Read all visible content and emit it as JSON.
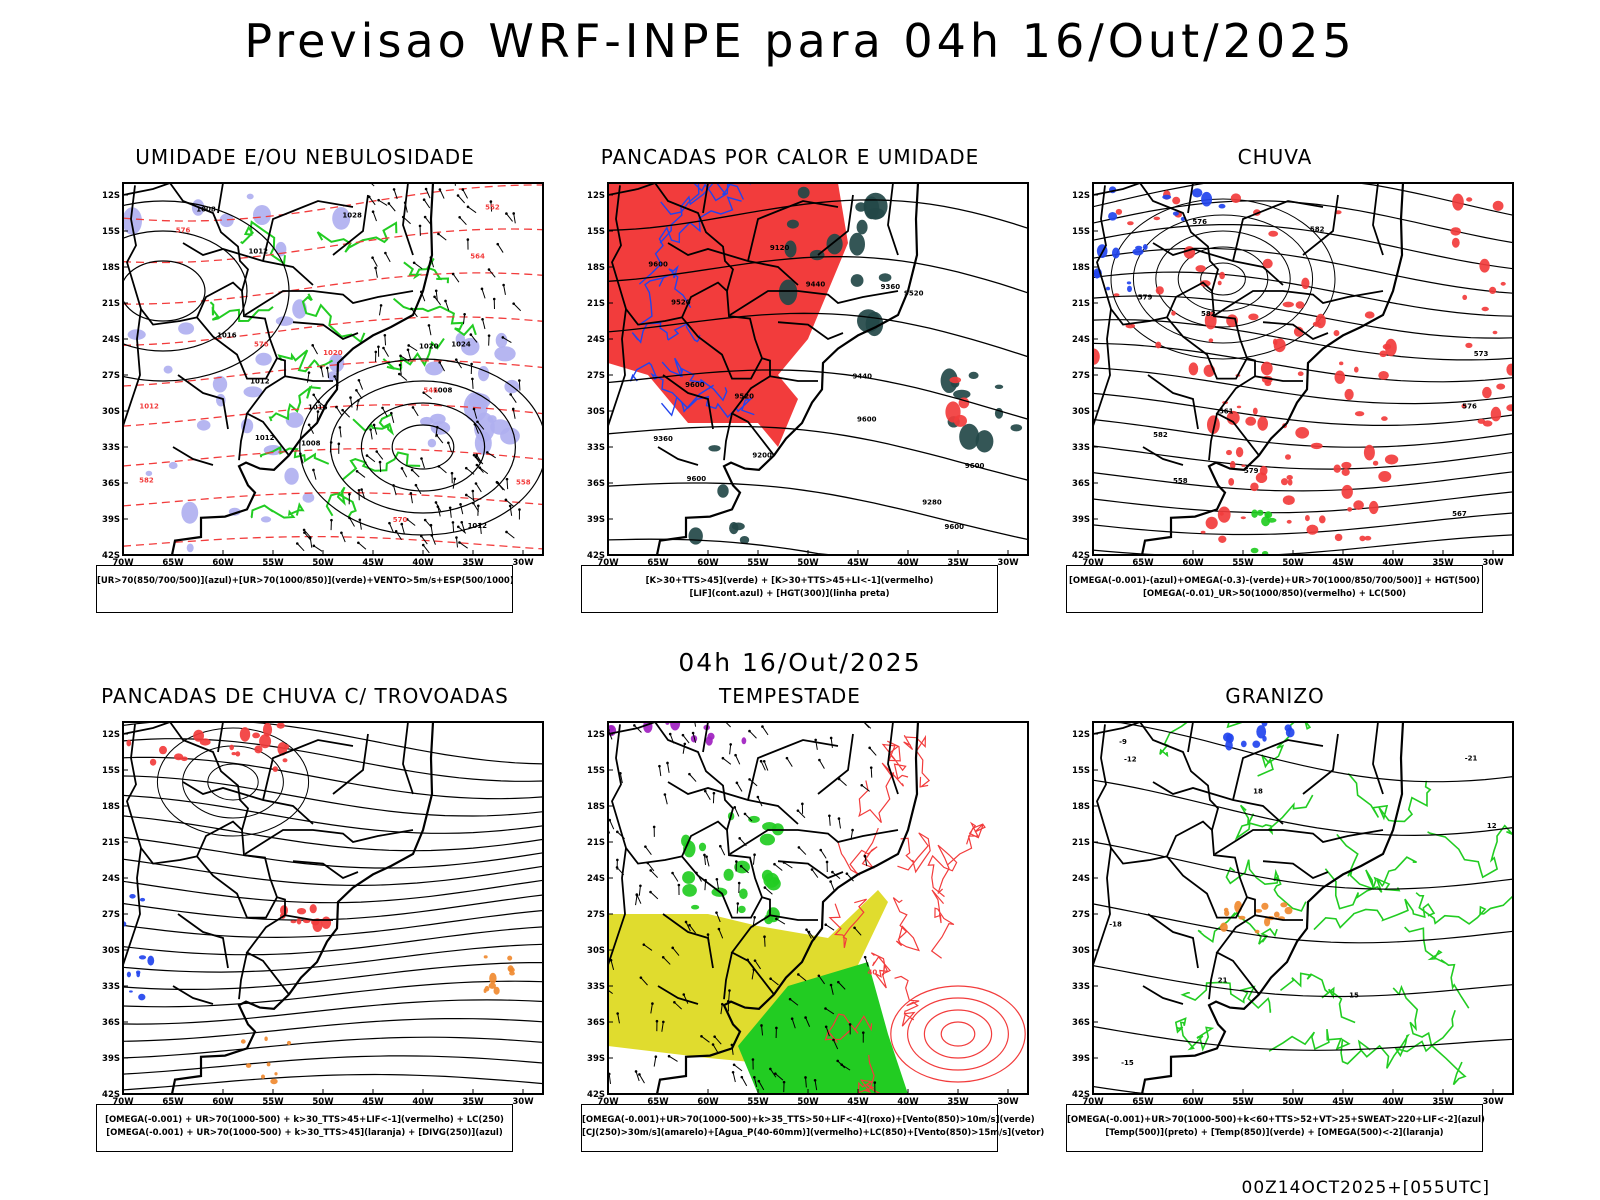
{
  "header": {
    "title": "Previsao WRF-INPE  para 04h 16/Out/2025",
    "subtitle": "04h 16/Out/2025",
    "footer": "00Z14OCT2025+[055UTC]"
  },
  "axes": {
    "lat_labels": [
      "12S",
      "15S",
      "18S",
      "21S",
      "24S",
      "27S",
      "30S",
      "33S",
      "36S",
      "39S",
      "42S"
    ],
    "lon_labels": [
      "70W",
      "65W",
      "60W",
      "55W",
      "50W",
      "45W",
      "40W",
      "35W",
      "30W"
    ]
  },
  "colors": {
    "red": "#f23c3c",
    "green": "#22cc22",
    "blue": "#2244ee",
    "lavender": "#b0b0f0",
    "darkteal": "#234848",
    "yellow": "#e0dc2e",
    "orange": "#f08a30",
    "purple": "#a020c0"
  },
  "panels": [
    {
      "title": "UMIDADE E/OU NEBULOSIDADE",
      "caption_lines": [
        "[UR>70(850/700/500)](azul)+[UR>70(1000/850)](verde)+VENTO>5m/s+ESP(500/1000)"
      ],
      "contour_labels": [
        "1016",
        "1016",
        "1008",
        "1008",
        "1012",
        "1012",
        "1008",
        "1012",
        "1012",
        "1020",
        "1024",
        "1028",
        "1020",
        "1012",
        "576",
        "576",
        "570",
        "564",
        "582",
        "558",
        "546",
        "552"
      ]
    },
    {
      "title": "PANCADAS POR CALOR E UMIDADE",
      "caption_lines": [
        "[K>30+TTS>45](verde) + [K>30+TTS>45+LI<-1](vermelho)",
        "[LIF](cont.azul) + [HGT(300)](linha preta)"
      ],
      "contour_labels": [
        "9600",
        "9600",
        "9600",
        "9600",
        "9600",
        "9520",
        "9600",
        "9520",
        "9520",
        "9440",
        "9360",
        "9280",
        "9200",
        "9120",
        "9440",
        "9360"
      ]
    },
    {
      "title": "CHUVA",
      "caption_lines": [
        "[OMEGA(-0.001)-(azul)+OMEGA(-0.3)-(verde)+UR>70(1000/850/700/500)] + HGT(500)",
        "[OMEGA(-0.01)_UR>50(1000/850)(vermelho) + LC(500)"
      ],
      "contour_labels": [
        "582",
        "582",
        "579",
        "579",
        "576",
        "573",
        "567",
        "561",
        "558",
        "576",
        "582"
      ]
    },
    {
      "title": "PANCADAS DE CHUVA C/ TROVOADAS",
      "caption_lines": [
        "[OMEGA(-0.001) + UR>70(1000-500) + k>30_TTS>45+LIF<-1](vermelho) + LC(250)",
        "[OMEGA(-0.001) + UR>70(1000-500) + k>30_TTS>45](laranja) + [DIVG(250)](azul)"
      ],
      "contour_labels": []
    },
    {
      "title": "TEMPESTADE",
      "caption_lines": [
        "[OMEGA(-0.001)+UR>70(1000-500)+k>35_TTS>50+LIF<-4](roxo)+[Vento(850)>10m/s](verde)",
        "[CJ(250)>30m/s](amarelo)+[Agua_P(40-60mm)](vermelho)+LC(850)+[Vento(850)>15m/s](vetor)"
      ],
      "contour_labels": [
        "40"
      ]
    },
    {
      "title": "GRANIZO",
      "caption_lines": [
        "[OMEGA(-0.001)+UR>70(1000-500)+k<60+TTS>52+VT>25+SWEAT>220+LIF<-2](azul)",
        "[Temp(500)](preto) + [Temp(850)](verde) + [OMEGA(500)<-2](laranja)"
      ],
      "contour_labels": [
        "-12",
        "-9",
        "-18",
        "-21",
        "12",
        "15",
        "18",
        "21",
        "-15"
      ]
    }
  ]
}
